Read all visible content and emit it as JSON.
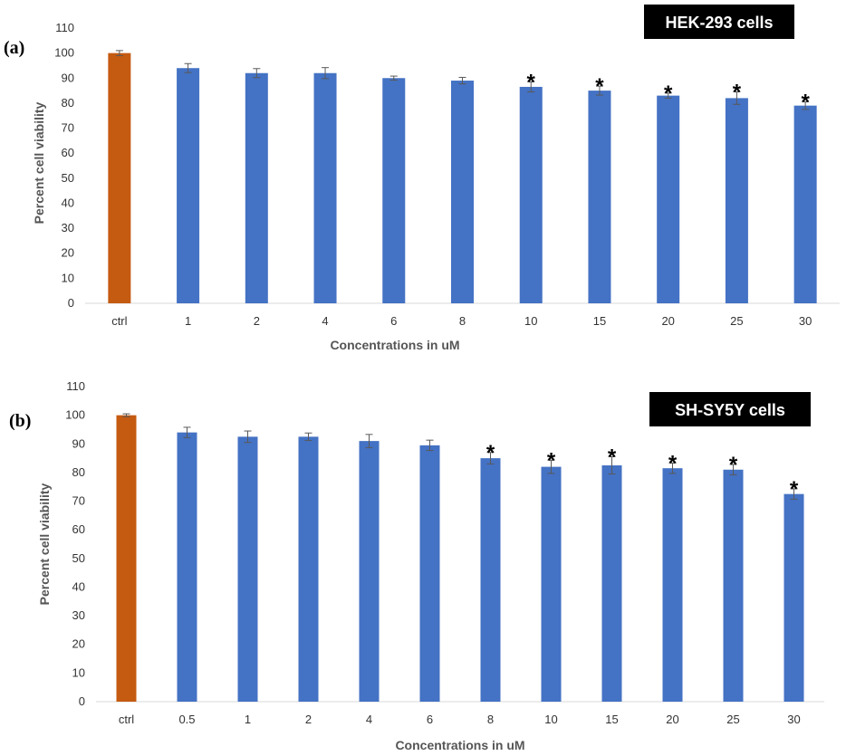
{
  "chart_data": [
    {
      "type": "bar",
      "panel_label": "(a)",
      "title": "HEK-293 cells",
      "xlabel": "Concentrations in uM",
      "ylabel": "Percent cell viability",
      "ylim": [
        0,
        110
      ],
      "yticks": [
        0,
        10,
        20,
        30,
        40,
        50,
        60,
        70,
        80,
        90,
        100,
        110
      ],
      "categories": [
        "ctrl",
        "1",
        "2",
        "4",
        "6",
        "8",
        "10",
        "15",
        "20",
        "25",
        "30"
      ],
      "values": [
        100,
        94,
        92,
        92,
        90,
        89,
        86.5,
        85,
        83,
        82,
        79
      ],
      "errors": [
        1,
        1.8,
        1.8,
        2.2,
        0.8,
        1.3,
        2,
        1.8,
        1,
        2.5,
        1.5
      ],
      "significant": [
        false,
        false,
        false,
        false,
        false,
        false,
        true,
        true,
        true,
        true,
        true
      ],
      "significance_marker": "*",
      "colors": {
        "control": "#c55a11",
        "treatment": "#4472c4"
      },
      "grid": false
    },
    {
      "type": "bar",
      "panel_label": "(b)",
      "title": "SH-SY5Y cells",
      "xlabel": "Concentrations in uM",
      "ylabel": "Percent cell viability",
      "ylim": [
        0,
        110
      ],
      "yticks": [
        0,
        10,
        20,
        30,
        40,
        50,
        60,
        70,
        80,
        90,
        100,
        110
      ],
      "categories": [
        "ctrl",
        "0.5",
        "1",
        "2",
        "4",
        "6",
        "8",
        "10",
        "15",
        "20",
        "25",
        "30"
      ],
      "values": [
        100,
        94,
        92.5,
        92.5,
        91,
        89.5,
        85,
        82,
        82.5,
        81.5,
        81,
        72.5
      ],
      "errors": [
        0.5,
        1.8,
        2,
        1.3,
        2.3,
        1.8,
        2,
        2.3,
        3,
        1.8,
        1.8,
        1.8
      ],
      "significant": [
        false,
        false,
        false,
        false,
        false,
        false,
        true,
        true,
        true,
        true,
        true,
        true
      ],
      "significance_marker": "*",
      "colors": {
        "control": "#c55a11",
        "treatment": "#4472c4"
      },
      "grid": false
    }
  ]
}
